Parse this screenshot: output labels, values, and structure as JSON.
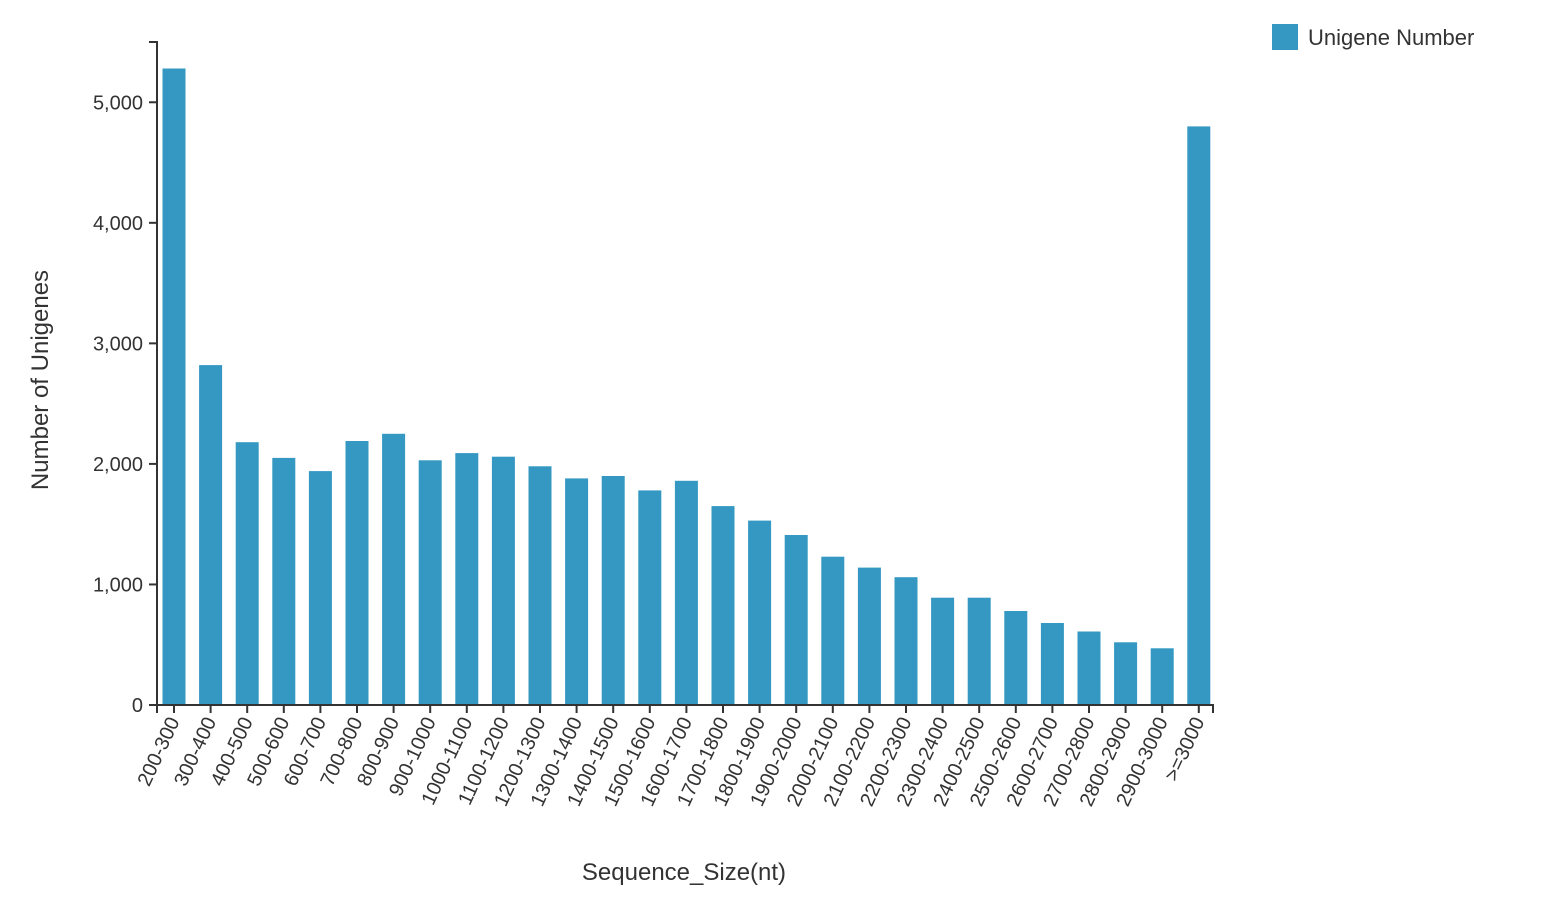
{
  "chart_data": {
    "type": "bar",
    "title": "",
    "xlabel": "Sequence_Size(nt)",
    "ylabel": "Number of Unigenes",
    "ylim": [
      0,
      5500
    ],
    "yticks": [
      0,
      1000,
      2000,
      3000,
      4000,
      5000
    ],
    "ytick_labels": [
      "0",
      "1,000",
      "2,000",
      "3,000",
      "4,000",
      "5,000"
    ],
    "grid": false,
    "legend_position": "top-right",
    "bar_color": "#3498c2",
    "categories": [
      "200-300",
      "300-400",
      "400-500",
      "500-600",
      "600-700",
      "700-800",
      "800-900",
      "900-1000",
      "1000-1100",
      "1100-1200",
      "1200-1300",
      "1300-1400",
      "1400-1500",
      "1500-1600",
      "1600-1700",
      "1700-1800",
      "1800-1900",
      "1900-2000",
      "2000-2100",
      "2100-2200",
      "2200-2300",
      "2300-2400",
      "2400-2500",
      "2500-2600",
      "2600-2700",
      "2700-2800",
      "2800-2900",
      "2900-3000",
      ">=3000"
    ],
    "series": [
      {
        "name": "Unigene Number",
        "values": [
          5280,
          2820,
          2180,
          2050,
          1940,
          2190,
          2250,
          2030,
          2090,
          2060,
          1980,
          1880,
          1900,
          1780,
          1860,
          1650,
          1530,
          1410,
          1230,
          1140,
          1060,
          890,
          890,
          780,
          680,
          610,
          520,
          470,
          4800
        ]
      }
    ]
  }
}
